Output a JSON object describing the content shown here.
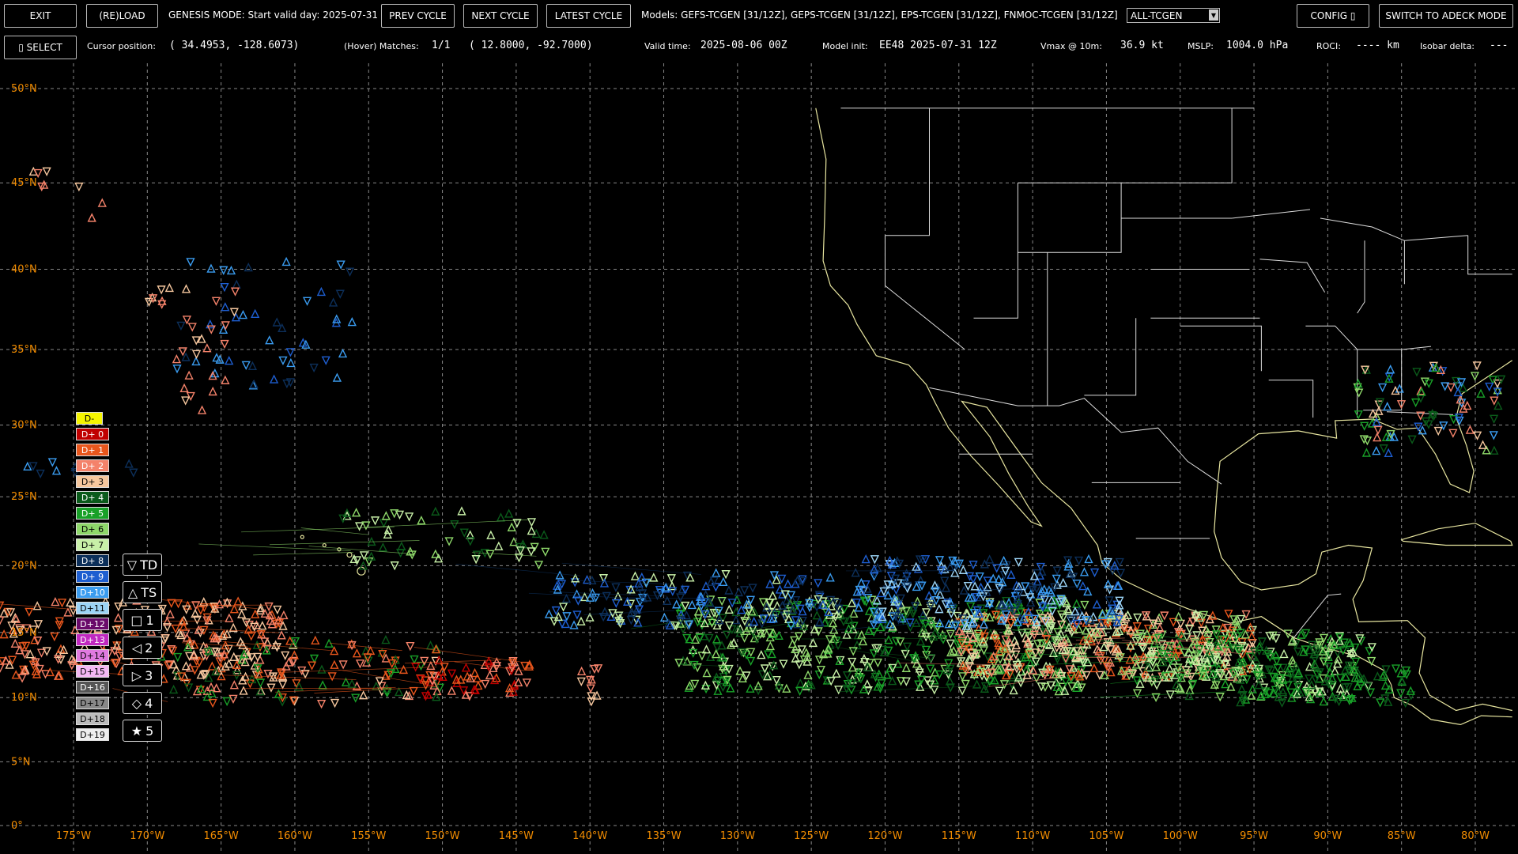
{
  "toolbar": {
    "exit": "EXIT",
    "reload": "(RE)LOAD",
    "mode_text": "GENESIS MODE: Start valid day: 2025-07-31",
    "prev_cycle": "PREV CYCLE",
    "next_cycle": "NEXT CYCLE",
    "latest_cycle": "LATEST CYCLE",
    "models_text": "Models: GEFS-TCGEN [31/12Z], GEPS-TCGEN [31/12Z], EPS-TCGEN [31/12Z], FNMOC-TCGEN [31/12Z]",
    "model_select": "ALL-TCGEN",
    "config": "CONFIG ▯",
    "switch_mode": "SWITCH TO ADECK MODE"
  },
  "statusbar": {
    "select": "▯ SELECT",
    "cursor_label": "Cursor position:",
    "cursor_value": "( 34.4953, -128.6073)",
    "matches_label": "(Hover) Matches:",
    "matches_value": "1/1",
    "match_pos": "( 12.8000,  -92.7000)",
    "valid_label": "Valid time:",
    "valid_value": "2025-08-06 00Z",
    "init_label": "Model init:",
    "init_value": "EE48 2025-07-31 12Z",
    "vmax_label": "Vmax @ 10m:",
    "vmax_value": "36.9 kt",
    "mslp_label": "MSLP:",
    "mslp_value": "1004.0 hPa",
    "roci_label": "ROCI:",
    "roci_value": "---- km",
    "isobar_label": "Isobar delta:",
    "isobar_value": "---"
  },
  "map": {
    "lat_labels": [
      "50°N",
      "45°N",
      "40°N",
      "35°N",
      "30°N",
      "25°N",
      "20°N",
      "15°N",
      "10°N",
      "5°N",
      "0°"
    ],
    "lon_labels": [
      "175°W",
      "170°W",
      "165°W",
      "160°W",
      "155°W",
      "150°W",
      "145°W",
      "140°W",
      "135°W",
      "130°W",
      "125°W",
      "120°W",
      "115°W",
      "110°W",
      "105°W",
      "100°W",
      "95°W",
      "90°W",
      "85°W",
      "80°W"
    ],
    "axis_color": "#f28c00",
    "grid_color": "#888888",
    "coast_color": "#e8e6a0",
    "border_color": "#dddddd"
  },
  "legend_days": [
    {
      "label": "D-",
      "bg": "#f5f500",
      "fg": "#000"
    },
    {
      "label": "D+ 0",
      "bg": "#c00000",
      "fg": "#fff"
    },
    {
      "label": "D+ 1",
      "bg": "#e8561c",
      "fg": "#fff"
    },
    {
      "label": "D+ 2",
      "bg": "#f4826a",
      "fg": "#fff"
    },
    {
      "label": "D+ 3",
      "bg": "#f6c79e",
      "fg": "#000"
    },
    {
      "label": "D+ 4",
      "bg": "#0a5a1a",
      "fg": "#fff"
    },
    {
      "label": "D+ 5",
      "bg": "#18a028",
      "fg": "#fff"
    },
    {
      "label": "D+ 6",
      "bg": "#8ed86a",
      "fg": "#000"
    },
    {
      "label": "D+ 7",
      "bg": "#c8f0a8",
      "fg": "#000"
    },
    {
      "label": "D+ 8",
      "bg": "#0c2f5a",
      "fg": "#fff"
    },
    {
      "label": "D+ 9",
      "bg": "#1e5ed0",
      "fg": "#fff"
    },
    {
      "label": "D+10",
      "bg": "#3a9cf0",
      "fg": "#fff"
    },
    {
      "label": "D+11",
      "bg": "#9cd4f6",
      "fg": "#000"
    },
    {
      "label": "D+12",
      "bg": "#6a0a6a",
      "fg": "#fff"
    },
    {
      "label": "D+13",
      "bg": "#c028c0",
      "fg": "#fff"
    },
    {
      "label": "D+14",
      "bg": "#e07ae0",
      "fg": "#000"
    },
    {
      "label": "D+15",
      "bg": "#f4b8f4",
      "fg": "#000"
    },
    {
      "label": "D+16",
      "bg": "#555555",
      "fg": "#fff"
    },
    {
      "label": "D+17",
      "bg": "#888888",
      "fg": "#000"
    },
    {
      "label": "D+18",
      "bg": "#bbbbbb",
      "fg": "#000"
    },
    {
      "label": "D+19",
      "bg": "#eeeeee",
      "fg": "#000"
    }
  ],
  "legend_categories": [
    {
      "symbol": "▽",
      "label": "TD"
    },
    {
      "symbol": "△",
      "label": "TS"
    },
    {
      "symbol": "□",
      "label": "1"
    },
    {
      "symbol": "◁",
      "label": "2"
    },
    {
      "symbol": "▷",
      "label": "3"
    },
    {
      "symbol": "◇",
      "label": "4"
    },
    {
      "symbol": "★",
      "label": "5"
    }
  ]
}
